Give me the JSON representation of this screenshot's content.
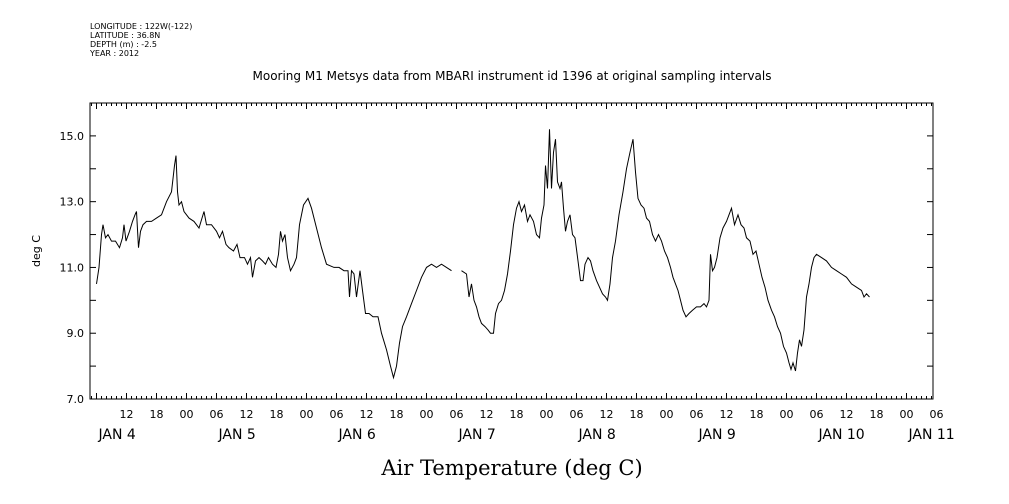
{
  "metadata": {
    "longitude": "LONGITUDE : 122W(-122)",
    "latitude": "LATITUDE : 36.8N",
    "depth": "DEPTH (m) : -2.5",
    "year": "YEAR : 2012"
  },
  "chart_data": {
    "type": "line",
    "title": "Mooring M1 Metsys data from MBARI instrument id 1396 at original sampling intervals",
    "xlabel": "Air Temperature (deg C)",
    "ylabel": "deg C",
    "ylim": [
      7.0,
      16.0
    ],
    "xlim_hours": [
      0,
      174
    ],
    "y_ticks": [
      7.0,
      9.0,
      11.0,
      13.0,
      15.0
    ],
    "y_tick_labels": [
      "7.0",
      "9.0",
      "11.0",
      "13.0",
      "15.0"
    ],
    "hour_ticks": [
      {
        "h": 6,
        "label": "12"
      },
      {
        "h": 12,
        "label": "18"
      },
      {
        "h": 18,
        "label": "00"
      },
      {
        "h": 24,
        "label": "06"
      },
      {
        "h": 30,
        "label": "12"
      },
      {
        "h": 36,
        "label": "18"
      },
      {
        "h": 42,
        "label": "00"
      },
      {
        "h": 48,
        "label": "06"
      },
      {
        "h": 54,
        "label": "12"
      },
      {
        "h": 60,
        "label": "18"
      },
      {
        "h": 66,
        "label": "00"
      },
      {
        "h": 72,
        "label": "06"
      },
      {
        "h": 78,
        "label": "12"
      },
      {
        "h": 84,
        "label": "18"
      },
      {
        "h": 90,
        "label": "00"
      },
      {
        "h": 96,
        "label": "06"
      },
      {
        "h": 102,
        "label": "12"
      },
      {
        "h": 108,
        "label": "18"
      },
      {
        "h": 114,
        "label": "00"
      },
      {
        "h": 120,
        "label": "06"
      },
      {
        "h": 126,
        "label": "12"
      },
      {
        "h": 132,
        "label": "18"
      },
      {
        "h": 138,
        "label": "00"
      },
      {
        "h": 144,
        "label": "06"
      },
      {
        "h": 150,
        "label": "12"
      },
      {
        "h": 156,
        "label": "18"
      },
      {
        "h": 162,
        "label": "00"
      },
      {
        "h": 168,
        "label": "06"
      }
    ],
    "day_labels": [
      {
        "h": 0,
        "label": "JAN  4"
      },
      {
        "h": 24,
        "label": "JAN  5"
      },
      {
        "h": 48,
        "label": "JAN  6"
      },
      {
        "h": 72,
        "label": "JAN  7"
      },
      {
        "h": 96,
        "label": "JAN  8"
      },
      {
        "h": 120,
        "label": "JAN  9"
      },
      {
        "h": 144,
        "label": "JAN 10"
      },
      {
        "h": 162,
        "label": "JAN 11"
      }
    ],
    "series": [
      {
        "segments": [
          [
            [
              0,
              10.5
            ],
            [
              0.5,
              11.0
            ],
            [
              1,
              12.0
            ],
            [
              1.3,
              12.3
            ],
            [
              1.8,
              11.9
            ],
            [
              2.3,
              12.0
            ],
            [
              3,
              11.8
            ],
            [
              3.8,
              11.8
            ],
            [
              4.6,
              11.6
            ],
            [
              5.2,
              11.9
            ],
            [
              5.5,
              12.3
            ],
            [
              5.9,
              11.8
            ],
            [
              6.6,
              12.1
            ],
            [
              7.2,
              12.4
            ],
            [
              7.7,
              12.6
            ],
            [
              8,
              12.7
            ],
            [
              8.4,
              11.6
            ],
            [
              8.8,
              12.1
            ],
            [
              9.3,
              12.3
            ],
            [
              10,
              12.4
            ],
            [
              11,
              12.4
            ],
            [
              12,
              12.5
            ],
            [
              13,
              12.6
            ],
            [
              14,
              13.0
            ],
            [
              15,
              13.3
            ],
            [
              15.6,
              14.1
            ],
            [
              15.9,
              14.4
            ],
            [
              16.2,
              13.3
            ],
            [
              16.5,
              12.9
            ],
            [
              17,
              13.0
            ],
            [
              17.5,
              12.7
            ],
            [
              18.5,
              12.5
            ],
            [
              19.5,
              12.4
            ],
            [
              20.5,
              12.2
            ],
            [
              21.5,
              12.7
            ],
            [
              22,
              12.3
            ],
            [
              23,
              12.3
            ],
            [
              24,
              12.1
            ],
            [
              24.6,
              11.9
            ],
            [
              25.2,
              12.1
            ],
            [
              25.9,
              11.7
            ],
            [
              26.5,
              11.6
            ],
            [
              27.4,
              11.5
            ],
            [
              28.1,
              11.7
            ],
            [
              28.7,
              11.3
            ],
            [
              29.6,
              11.3
            ],
            [
              30.2,
              11.1
            ],
            [
              30.8,
              11.3
            ],
            [
              31.2,
              10.7
            ],
            [
              31.8,
              11.2
            ],
            [
              32.5,
              11.3
            ],
            [
              33.2,
              11.2
            ],
            [
              33.8,
              11.1
            ],
            [
              34.4,
              11.3
            ],
            [
              35.2,
              11.1
            ],
            [
              35.9,
              11.0
            ],
            [
              36.4,
              11.4
            ],
            [
              36.8,
              12.1
            ],
            [
              37.2,
              11.8
            ],
            [
              37.7,
              12.0
            ],
            [
              38.2,
              11.3
            ],
            [
              38.8,
              10.9
            ],
            [
              39.5,
              11.1
            ],
            [
              40,
              11.3
            ],
            [
              40.6,
              12.3
            ],
            [
              41.4,
              12.9
            ],
            [
              42.3,
              13.1
            ],
            [
              43,
              12.8
            ],
            [
              44,
              12.2
            ],
            [
              45,
              11.6
            ],
            [
              46,
              11.1
            ],
            [
              47.5,
              11.0
            ],
            [
              48.5,
              11.0
            ],
            [
              49.5,
              10.9
            ],
            [
              50.3,
              10.9
            ],
            [
              50.6,
              10.1
            ],
            [
              51,
              10.9
            ],
            [
              51.5,
              10.8
            ],
            [
              52,
              10.1
            ],
            [
              52.7,
              10.9
            ],
            [
              53.2,
              10.3
            ],
            [
              53.8,
              9.6
            ],
            [
              54.5,
              9.6
            ],
            [
              55.3,
              9.5
            ],
            [
              56.3,
              9.5
            ],
            [
              57,
              9.0
            ],
            [
              58,
              8.5
            ],
            [
              58.8,
              8.0
            ],
            [
              59.4,
              7.65
            ],
            [
              60,
              8.0
            ],
            [
              60.6,
              8.7
            ],
            [
              61.2,
              9.2
            ],
            [
              62,
              9.5
            ],
            [
              63,
              9.9
            ],
            [
              64,
              10.3
            ],
            [
              65,
              10.7
            ],
            [
              66,
              11.0
            ],
            [
              67,
              11.1
            ],
            [
              68,
              11.0
            ],
            [
              69,
              11.1
            ],
            [
              70,
              11.0
            ],
            [
              71,
              10.9
            ]
          ],
          [
            [
              73,
              10.9
            ],
            [
              74,
              10.8
            ],
            [
              74.5,
              10.1
            ],
            [
              75,
              10.5
            ],
            [
              75.5,
              10.0
            ],
            [
              76,
              9.8
            ],
            [
              76.5,
              9.5
            ],
            [
              77,
              9.3
            ],
            [
              77.7,
              9.2
            ],
            [
              78.3,
              9.1
            ],
            [
              78.8,
              9.0
            ],
            [
              79.4,
              9.0
            ],
            [
              79.8,
              9.6
            ],
            [
              80.4,
              9.9
            ],
            [
              81,
              10.0
            ],
            [
              81.6,
              10.3
            ],
            [
              82.2,
              10.8
            ],
            [
              82.8,
              11.5
            ],
            [
              83.4,
              12.3
            ],
            [
              84,
              12.8
            ],
            [
              84.5,
              13.0
            ],
            [
              85,
              12.7
            ],
            [
              85.6,
              12.9
            ],
            [
              86.2,
              12.4
            ],
            [
              86.7,
              12.6
            ],
            [
              87.4,
              12.4
            ],
            [
              88,
              12.0
            ],
            [
              88.6,
              11.9
            ],
            [
              89,
              12.5
            ],
            [
              89.5,
              12.9
            ],
            [
              89.8,
              14.1
            ],
            [
              90.2,
              13.4
            ],
            [
              90.6,
              15.2
            ],
            [
              91,
              13.4
            ],
            [
              91.4,
              14.5
            ],
            [
              91.8,
              14.9
            ],
            [
              92.2,
              13.6
            ],
            [
              92.7,
              13.4
            ],
            [
              93,
              13.6
            ],
            [
              93.4,
              12.8
            ],
            [
              93.8,
              12.1
            ],
            [
              94.2,
              12.4
            ],
            [
              94.7,
              12.6
            ],
            [
              95.2,
              12.0
            ],
            [
              95.7,
              11.9
            ],
            [
              96.3,
              11.2
            ],
            [
              96.8,
              10.6
            ],
            [
              97.3,
              10.6
            ],
            [
              97.7,
              11.1
            ],
            [
              98.3,
              11.3
            ],
            [
              98.8,
              11.2
            ],
            [
              99.3,
              10.9
            ],
            [
              100,
              10.6
            ],
            [
              100.6,
              10.4
            ],
            [
              101.2,
              10.2
            ],
            [
              101.8,
              10.1
            ],
            [
              102.2,
              10.0
            ],
            [
              102.7,
              10.5
            ],
            [
              103.2,
              11.3
            ],
            [
              103.8,
              11.8
            ],
            [
              104.5,
              12.6
            ],
            [
              105.3,
              13.3
            ],
            [
              106,
              14.0
            ],
            [
              106.7,
              14.5
            ],
            [
              107.3,
              14.9
            ],
            [
              107.8,
              13.9
            ],
            [
              108.3,
              13.1
            ],
            [
              108.9,
              12.9
            ],
            [
              109.5,
              12.8
            ],
            [
              110,
              12.5
            ],
            [
              110.6,
              12.4
            ],
            [
              111.2,
              12.0
            ],
            [
              111.8,
              11.8
            ],
            [
              112.4,
              12.0
            ],
            [
              113,
              11.8
            ],
            [
              113.6,
              11.5
            ],
            [
              114.2,
              11.3
            ],
            [
              114.8,
              11.0
            ],
            [
              115.3,
              10.7
            ],
            [
              115.8,
              10.5
            ],
            [
              116.3,
              10.3
            ],
            [
              116.8,
              10.0
            ],
            [
              117.3,
              9.7
            ],
            [
              117.9,
              9.5
            ],
            [
              118.5,
              9.6
            ],
            [
              119.2,
              9.7
            ],
            [
              120,
              9.8
            ],
            [
              120.8,
              9.8
            ],
            [
              121.5,
              9.9
            ],
            [
              122,
              9.8
            ],
            [
              122.5,
              10.0
            ],
            [
              122.8,
              11.4
            ],
            [
              123.2,
              10.9
            ],
            [
              123.6,
              11.0
            ],
            [
              124.1,
              11.3
            ],
            [
              124.7,
              11.9
            ],
            [
              125.3,
              12.2
            ],
            [
              126,
              12.4
            ],
            [
              126.5,
              12.6
            ],
            [
              127,
              12.8
            ],
            [
              127.6,
              12.3
            ],
            [
              128.3,
              12.6
            ],
            [
              128.9,
              12.3
            ],
            [
              129.5,
              12.2
            ],
            [
              130,
              11.9
            ],
            [
              130.7,
              11.8
            ],
            [
              131.3,
              11.4
            ],
            [
              131.9,
              11.5
            ],
            [
              132.5,
              11.1
            ],
            [
              133.1,
              10.7
            ],
            [
              133.7,
              10.4
            ],
            [
              134.3,
              10.0
            ],
            [
              135,
              9.7
            ],
            [
              135.6,
              9.5
            ],
            [
              136.2,
              9.2
            ],
            [
              136.8,
              9.0
            ],
            [
              137.4,
              8.6
            ],
            [
              138,
              8.4
            ],
            [
              138.5,
              8.1
            ],
            [
              138.9,
              7.9
            ],
            [
              139.3,
              8.1
            ],
            [
              139.8,
              7.85
            ],
            [
              140.2,
              8.4
            ],
            [
              140.6,
              8.8
            ],
            [
              141,
              8.6
            ],
            [
              141.5,
              9.1
            ],
            [
              142,
              10.1
            ],
            [
              142.5,
              10.5
            ],
            [
              143,
              11.0
            ],
            [
              143.5,
              11.3
            ],
            [
              144,
              11.4
            ],
            [
              145,
              11.3
            ],
            [
              146,
              11.2
            ],
            [
              147,
              11.0
            ],
            [
              148,
              10.9
            ],
            [
              149,
              10.8
            ],
            [
              150,
              10.7
            ],
            [
              151,
              10.5
            ],
            [
              152,
              10.4
            ],
            [
              153,
              10.3
            ],
            [
              153.5,
              10.1
            ],
            [
              154,
              10.2
            ],
            [
              154.6,
              10.1
            ]
          ]
        ]
      }
    ]
  }
}
